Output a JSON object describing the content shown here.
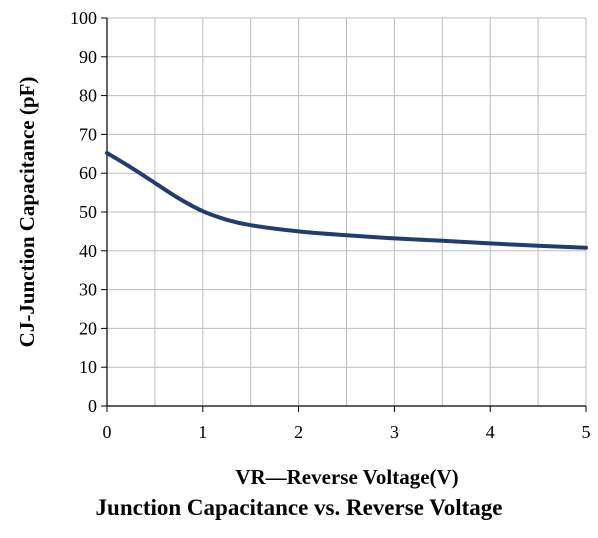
{
  "caption": "Junction Capacitance vs. Reverse Voltage",
  "chart_data": {
    "type": "line",
    "xlabel": "VR—Reverse Voltage(V)",
    "ylabel": "CJ-Junction Capacitance (pF)",
    "xlim": [
      0,
      5
    ],
    "ylim": [
      0,
      100
    ],
    "xticks": [
      "0",
      "1",
      "2",
      "3",
      "4",
      "5"
    ],
    "yticks": [
      "0",
      "10",
      "20",
      "30",
      "40",
      "50",
      "60",
      "70",
      "80",
      "90",
      "100"
    ],
    "grid": true,
    "x_minor_grid_step": 0.5,
    "line_color": "#1f3d6e",
    "series": [
      {
        "x": [
          0,
          0.25,
          0.5,
          0.75,
          1,
          1.25,
          1.5,
          2,
          2.5,
          3,
          3.5,
          4,
          4.5,
          5
        ],
        "values": [
          65.2,
          61.5,
          57.5,
          53.5,
          50.2,
          48.0,
          46.6,
          45.0,
          44.0,
          43.2,
          42.6,
          41.9,
          41.3,
          40.8
        ]
      }
    ]
  }
}
